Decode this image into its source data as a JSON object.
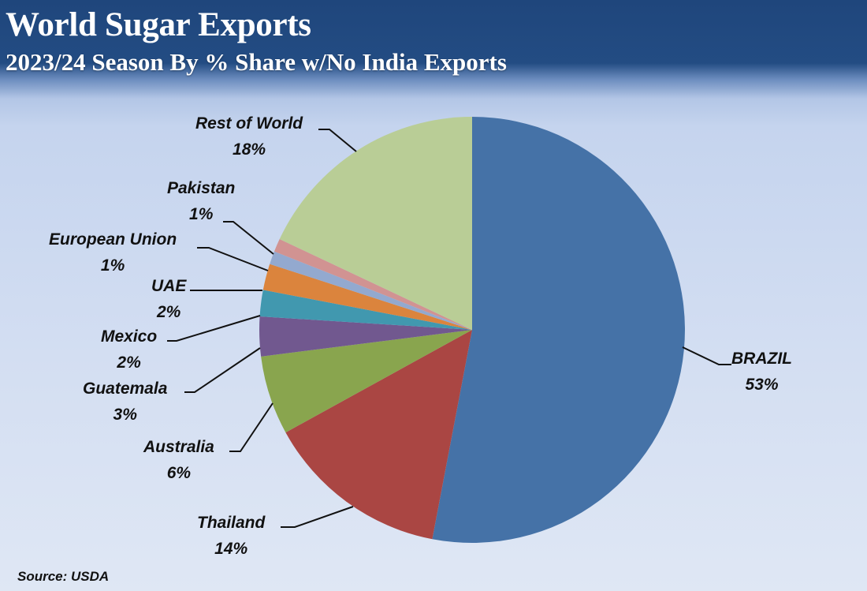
{
  "header": {
    "title": "World Sugar Exports",
    "subtitle": "2023/24 Season By % Share w/No India Exports"
  },
  "footer": {
    "source": "Source: USDA"
  },
  "colors": {
    "header_bg": "#1f467c",
    "background": "#d3def2"
  },
  "chart_data": {
    "type": "pie",
    "title": "World Sugar Exports",
    "subtitle": "2023/24 Season By % Share w/No India Exports",
    "start_angle": "12 o'clock, clockwise",
    "legend": "none (data labels with leader lines)",
    "categories": [
      "BRAZIL",
      "Thailand",
      "Australia",
      "Guatemala",
      "Mexico",
      "UAE",
      "European Union",
      "Pakistan",
      "Rest of World"
    ],
    "values": [
      53,
      14,
      6,
      3,
      2,
      2,
      1,
      1,
      18
    ],
    "labels": [
      "53%",
      "14%",
      "6%",
      "3%",
      "2%",
      "2%",
      "1%",
      "1%",
      "18%"
    ],
    "slice_colors": [
      "#4572a7",
      "#aa4643",
      "#89a54e",
      "#71588f",
      "#4198af",
      "#db843d",
      "#93a9cf",
      "#d19392",
      "#b9cd96"
    ],
    "source": "Source: USDA"
  },
  "labels": [
    {
      "name": "BRAZIL",
      "pct": "53%"
    },
    {
      "name": "Thailand",
      "pct": "14%"
    },
    {
      "name": "Australia",
      "pct": "6%"
    },
    {
      "name": "Guatemala",
      "pct": "3%"
    },
    {
      "name": "Mexico",
      "pct": "2%"
    },
    {
      "name": "UAE",
      "pct": "2%"
    },
    {
      "name": "European Union",
      "pct": "1%"
    },
    {
      "name": "Pakistan",
      "pct": "1%"
    },
    {
      "name": "Rest of World",
      "pct": "18%"
    }
  ]
}
